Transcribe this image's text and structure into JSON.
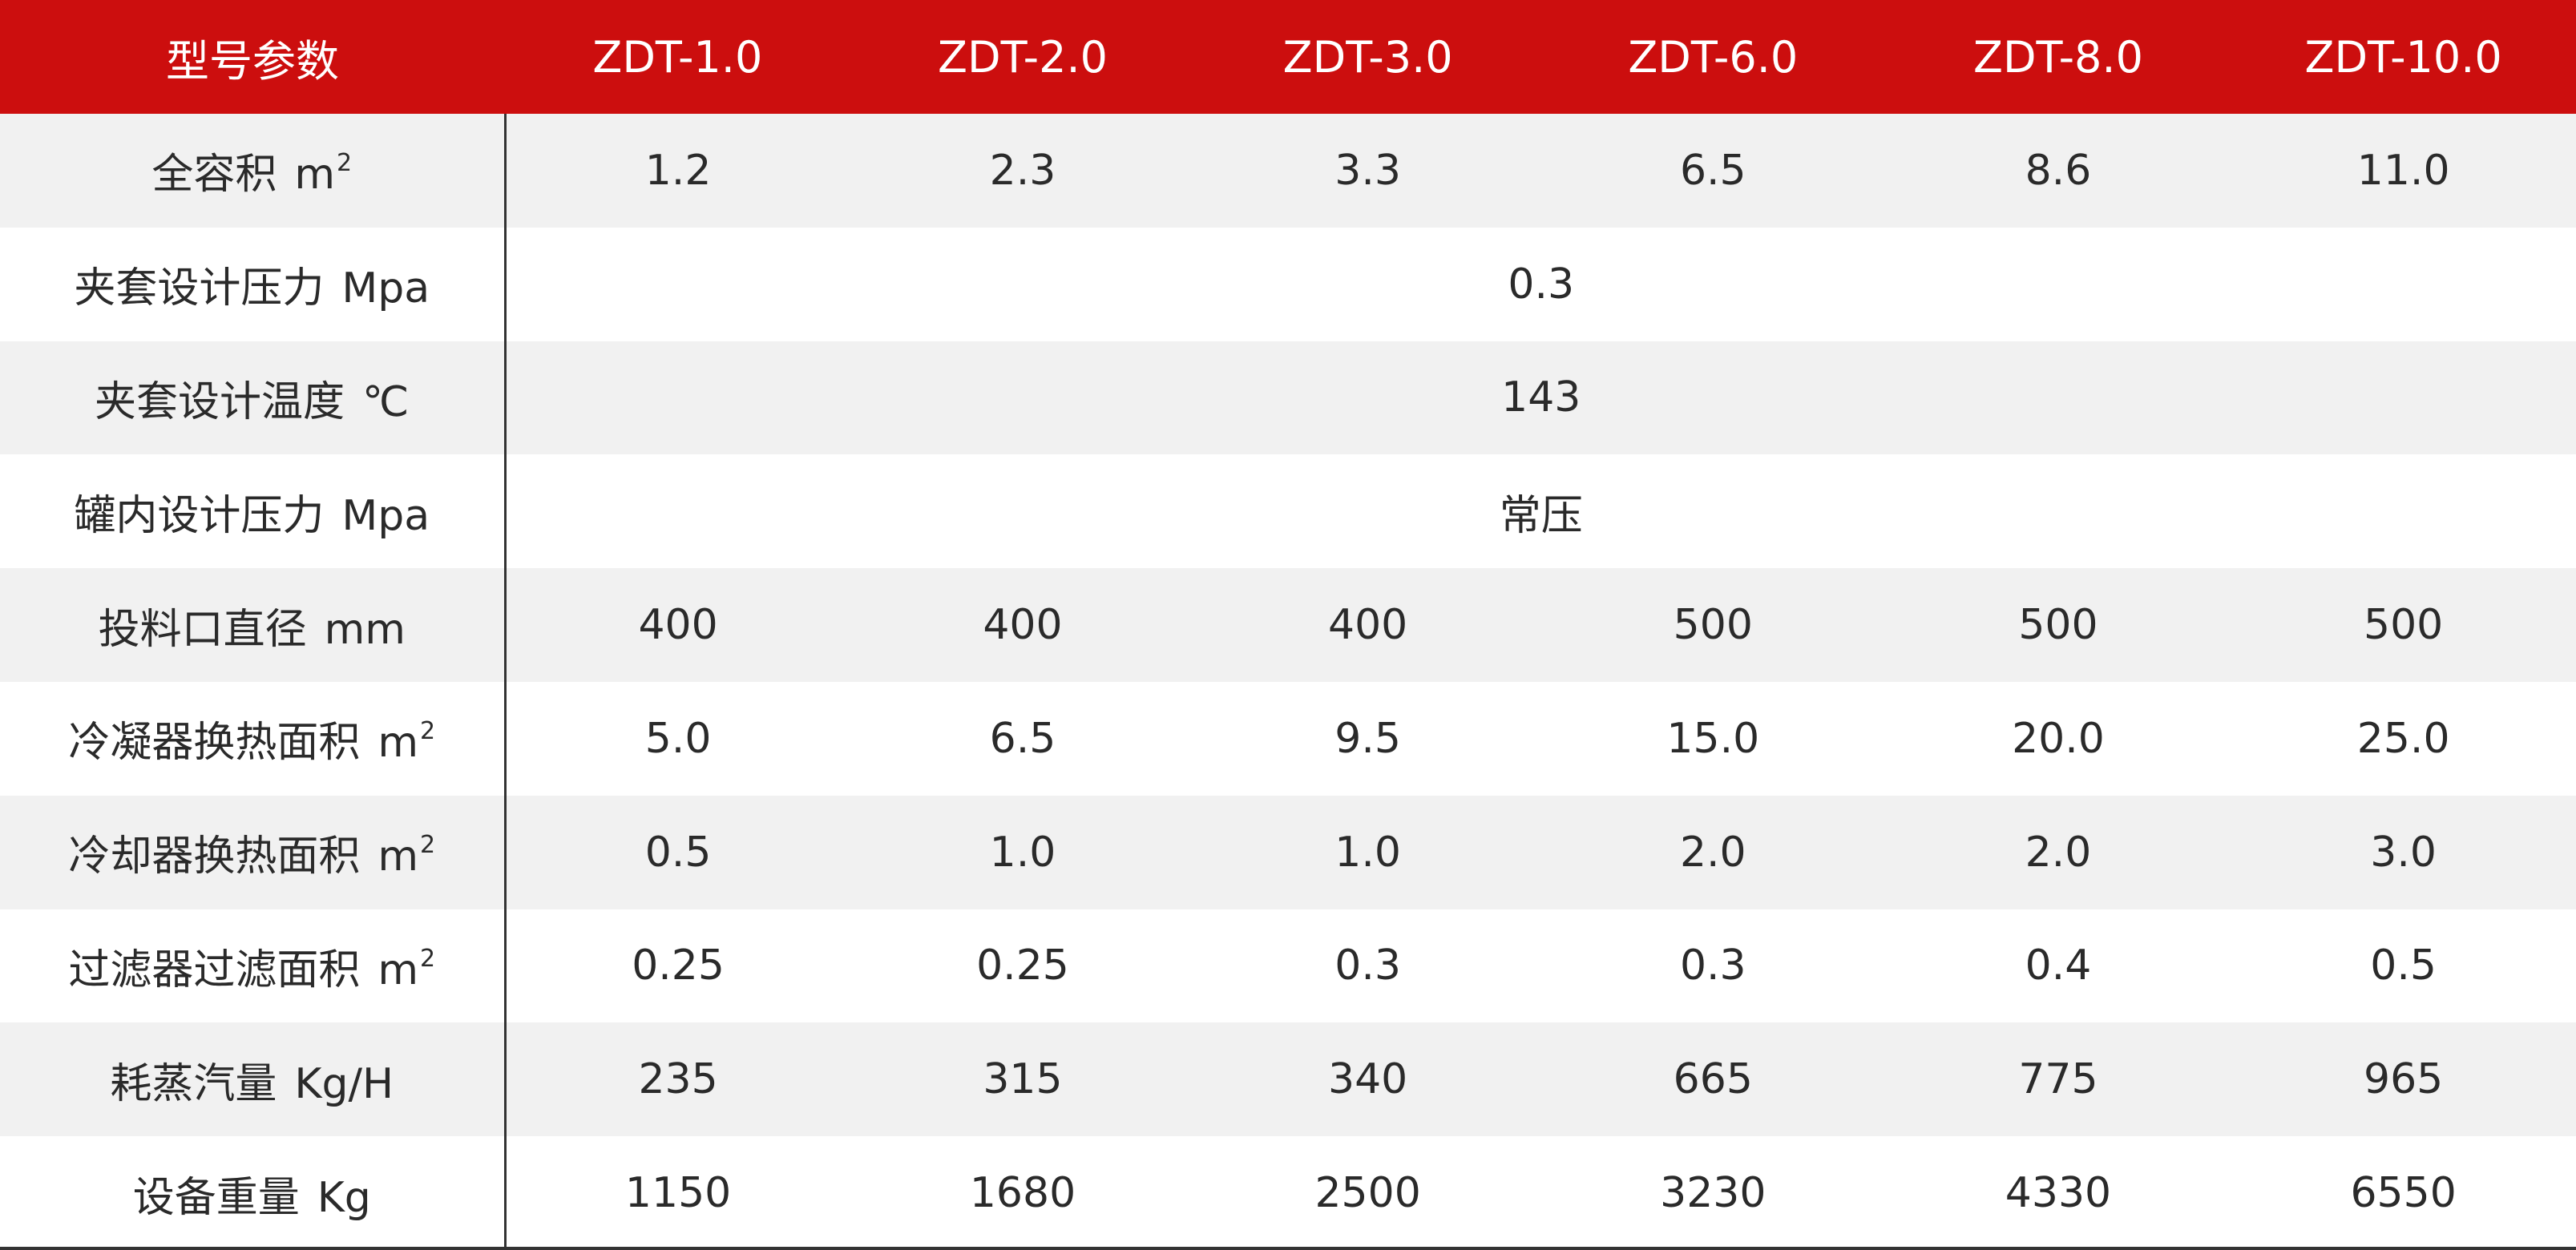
{
  "header": {
    "label": "型号参数",
    "models": [
      "ZDT-1.0",
      "ZDT-2.0",
      "ZDT-3.0",
      "ZDT-6.0",
      "ZDT-8.0",
      "ZDT-10.0"
    ]
  },
  "rows": [
    {
      "label": "全容积",
      "unit": "m",
      "sup": "2",
      "values": [
        "1.2",
        "2.3",
        "3.3",
        "6.5",
        "8.6",
        "11.0"
      ]
    },
    {
      "label": "夹套设计压力",
      "unit": "Mpa",
      "sup": "",
      "merged": "0.3"
    },
    {
      "label": "夹套设计温度",
      "unit": "℃",
      "sup": "",
      "merged": "143"
    },
    {
      "label": "罐内设计压力",
      "unit": "Mpa",
      "sup": "",
      "merged": "常压"
    },
    {
      "label": "投料口直径",
      "unit": "mm",
      "sup": "",
      "values": [
        "400",
        "400",
        "400",
        "500",
        "500",
        "500"
      ]
    },
    {
      "label": "冷凝器换热面积",
      "unit": "m",
      "sup": "2",
      "values": [
        "5.0",
        "6.5",
        "9.5",
        "15.0",
        "20.0",
        "25.0"
      ]
    },
    {
      "label": "冷却器换热面积",
      "unit": "m",
      "sup": "2",
      "values": [
        "0.5",
        "1.0",
        "1.0",
        "2.0",
        "2.0",
        "3.0"
      ]
    },
    {
      "label": "过滤器过滤面积",
      "unit": "m",
      "sup": "2",
      "values": [
        "0.25",
        "0.25",
        "0.3",
        "0.3",
        "0.4",
        "0.5"
      ]
    },
    {
      "label": "耗蒸汽量",
      "unit": "Kg/H",
      "sup": "",
      "values": [
        "235",
        "315",
        "340",
        "665",
        "775",
        "965"
      ]
    },
    {
      "label": "设备重量",
      "unit": "Kg",
      "sup": "",
      "values": [
        "1150",
        "1680",
        "2500",
        "3230",
        "4330",
        "6550"
      ]
    }
  ],
  "colors": {
    "header_bg": "#cc0e0e",
    "header_text": "#ffffff",
    "row_shade": "#f1f1f1",
    "row_plain": "#ffffff",
    "text": "#2a2a2a"
  }
}
